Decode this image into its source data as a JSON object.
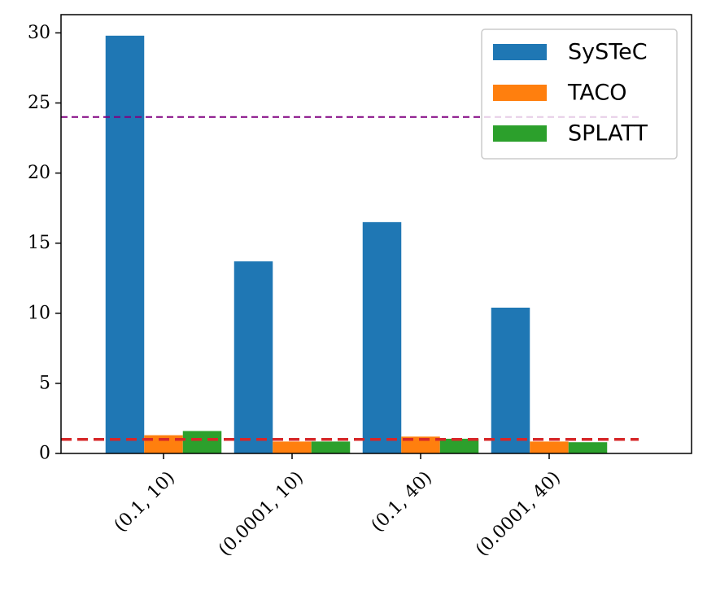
{
  "chart_data": {
    "type": "bar",
    "title": "",
    "xlabel": "",
    "ylabel": "",
    "categories": [
      "(0.1, 10)",
      "(0.0001, 10)",
      "(0.1, 40)",
      "(0.0001, 40)"
    ],
    "series": [
      {
        "name": "SySTeC",
        "color": "#1f77b4",
        "values": [
          29.8,
          13.7,
          16.5,
          10.4
        ]
      },
      {
        "name": "TACO",
        "color": "#ff7f0e",
        "values": [
          1.3,
          0.85,
          1.2,
          0.85
        ]
      },
      {
        "name": "SPLATT",
        "color": "#2ca02c",
        "values": [
          1.6,
          0.85,
          1.05,
          0.8
        ]
      }
    ],
    "ylim": [
      0,
      31.3
    ],
    "yticks": [
      0,
      5,
      10,
      15,
      20,
      25,
      30
    ],
    "reference_lines": [
      {
        "y": 24,
        "color": "#800080",
        "style": "dashed"
      },
      {
        "y": 1,
        "color": "#d62728",
        "style": "dashed"
      }
    ],
    "grid": false,
    "legend_position": "top-right"
  }
}
